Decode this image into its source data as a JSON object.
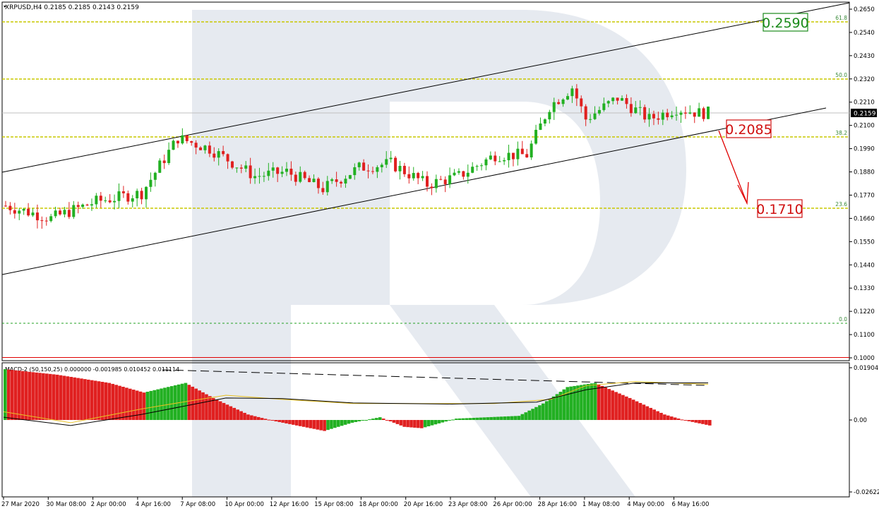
{
  "header": {
    "symbol_line": "XRPUSD,H4  0.2185 0.2185 0.2143 0.2159",
    "macd_line": "MACD-2 (50,150,25) 0.000000 -0.001985 0.010452 0.011114"
  },
  "colors": {
    "bull": "#22b022",
    "bear": "#e02020",
    "fib": "#c8c800",
    "fib_label": "#3a8a3a",
    "target_red": "#d01010",
    "target_green": "#1a8a1a",
    "macd_signal1": "#e8c020",
    "macd_signal2": "#000000"
  },
  "chart_data": [
    {
      "type": "candlestick",
      "symbol": "XRPUSD",
      "timeframe": "H4",
      "ohlc_header": {
        "open": 0.2185,
        "high": 0.2185,
        "low": 0.2143,
        "close": 0.2159
      },
      "current_price_label": "0.2159",
      "y_ticks": [
        "0.2650",
        "0.2540",
        "0.2430",
        "0.2320",
        "0.2210",
        "0.2100",
        "0.1990",
        "0.1880",
        "0.1770",
        "0.1660",
        "0.1550",
        "0.1440",
        "0.1330",
        "0.1220",
        "0.1100",
        "0.1000"
      ],
      "x_ticks": [
        "27 Mar 2020",
        "30 Mar 08:00",
        "2 Apr 00:00",
        "4 Apr 16:00",
        "7 Apr 08:00",
        "10 Apr 00:00",
        "12 Apr 16:00",
        "15 Apr 08:00",
        "18 Apr 00:00",
        "20 Apr 16:00",
        "23 Apr 08:00",
        "26 Apr 00:00",
        "28 Apr 16:00",
        "1 May 08:00",
        "4 May 00:00",
        "6 May 16:00"
      ],
      "ylim": [
        0.1,
        0.2675
      ],
      "fib_levels": [
        {
          "label": "61.8",
          "price": 0.259
        },
        {
          "label": "50.0",
          "price": 0.231
        },
        {
          "label": "38.2",
          "price": 0.203
        },
        {
          "label": "23.6",
          "price": 0.1695
        },
        {
          "label": "0.0",
          "price": 0.1165
        }
      ],
      "targets": [
        {
          "label": "0.2085",
          "color": "red"
        },
        {
          "label": "0.1710",
          "color": "red"
        },
        {
          "label": "0.2590",
          "color": "green"
        }
      ],
      "channel": {
        "upper": [
          [
            0,
            0.1855
          ],
          [
            155,
            0.2675
          ]
        ],
        "lower": [
          [
            0,
            0.139
          ],
          [
            155,
            0.2155
          ]
        ]
      },
      "candles_approx": [
        {
          "i": 0,
          "price": 0.172
        },
        {
          "i": 10,
          "price": 0.166
        },
        {
          "i": 20,
          "price": 0.174
        },
        {
          "i": 30,
          "price": 0.178
        },
        {
          "i": 38,
          "price": 0.204
        },
        {
          "i": 45,
          "price": 0.199
        },
        {
          "i": 55,
          "price": 0.186
        },
        {
          "i": 62,
          "price": 0.188
        },
        {
          "i": 70,
          "price": 0.18
        },
        {
          "i": 78,
          "price": 0.19
        },
        {
          "i": 85,
          "price": 0.192
        },
        {
          "i": 93,
          "price": 0.182
        },
        {
          "i": 100,
          "price": 0.186
        },
        {
          "i": 108,
          "price": 0.196
        },
        {
          "i": 115,
          "price": 0.196
        },
        {
          "i": 120,
          "price": 0.219
        },
        {
          "i": 125,
          "price": 0.228
        },
        {
          "i": 128,
          "price": 0.213
        },
        {
          "i": 135,
          "price": 0.223
        },
        {
          "i": 142,
          "price": 0.213
        },
        {
          "i": 148,
          "price": 0.218
        },
        {
          "i": 153,
          "price": 0.2159
        }
      ]
    },
    {
      "type": "bar",
      "name": "MACD-2 (50,150,25)",
      "y_ticks": [
        "0.01904",
        "0.00",
        "-0.02622"
      ],
      "ylim": [
        -0.02622,
        0.01904
      ]
    }
  ]
}
